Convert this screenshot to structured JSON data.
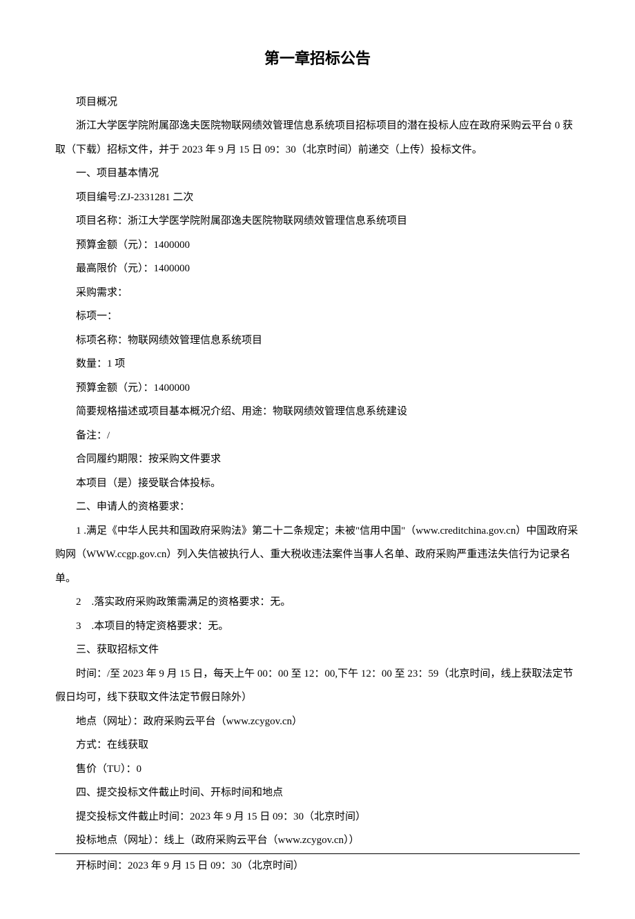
{
  "title": "第一章招标公告",
  "lines": {
    "l1": "项目概况",
    "l2": "浙江大学医学院附属邵逸夫医院物联网绩效管理信息系统项目招标项目的潜在投标人应在政府采购云平台 0 获取（下载）招标文件，并于 2023 年 9 月 15 日 09：30（北京时间）前递交（上传）投标文件。",
    "l3": "一、项目基本情况",
    "l4": "项目编号:ZJ-2331281 二次",
    "l5": "项目名称：浙江大学医学院附属邵逸夫医院物联网绩效管理信息系统项目",
    "l6": "预算金额（元）：1400000",
    "l7": "最高限价（元）：1400000",
    "l8": "采购需求：",
    "l9": "标项一：",
    "l10": "标项名称：物联网绩效管理信息系统项目",
    "l11": "数量：1 项",
    "l12": "预算金额（元）：1400000",
    "l13": "简要规格描述或项目基本概况介绍、用途：物联网绩效管理信息系统建设",
    "l14": "备注：/",
    "l15": "合同履约期限：按采购文件要求",
    "l16": "本项目（是）接受联合体投标。",
    "l17": "二、申请人的资格要求：",
    "l18": "1 .满足《中华人民共和国政府采购法》第二十二条规定；未被\"信用中国\"（www.creditchina.gov.cn）中国政府采购网（WWW.ccgp.gov.cn）列入失信被执行人、重大税收违法案件当事人名单、政府采购严重违法失信行为记录名单。",
    "l19": "2    .落实政府采购政策需满足的资格要求：无。",
    "l20": "3    .本项目的特定资格要求：无。",
    "l21": "三、获取招标文件",
    "l22": "时间：/至 2023 年 9 月 15 日，每天上午 00：00 至 12：00,下午 12：00 至 23：59（北京时间，线上获取法定节假日均可，线下获取文件法定节假日除外）",
    "l23": "地点（网址）：政府采购云平台（www.zcygov.cn）",
    "l24": "方式：在线获取",
    "l25": "售价（TU）：0",
    "l26": "四、提交投标文件截止时间、开标时间和地点",
    "l27": "提交投标文件截止时间：2023 年 9 月 15 日 09：30（北京时间）",
    "l28": "投标地点（网址）：线上（政府采购云平台（www.zcygov.cn））",
    "l29": "开标时间：2023 年 9 月 15 日 09：30（北京时间）"
  }
}
